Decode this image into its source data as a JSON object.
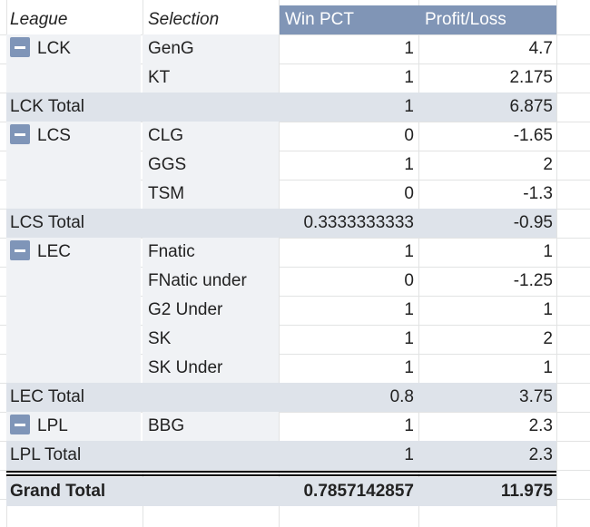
{
  "headers": {
    "league": "League",
    "selection": "Selection",
    "win_pct": "Win PCT",
    "profit_loss": "Profit/Loss"
  },
  "groups": [
    {
      "league": "LCK",
      "rows": [
        {
          "selection": "GenG",
          "win": "1",
          "pl": "4.7"
        },
        {
          "selection": "KT",
          "win": "1",
          "pl": "2.175"
        }
      ],
      "total_label": "LCK Total",
      "total_win": "1",
      "total_pl": "6.875"
    },
    {
      "league": "LCS",
      "rows": [
        {
          "selection": "CLG",
          "win": "0",
          "pl": "-1.65"
        },
        {
          "selection": "GGS",
          "win": "1",
          "pl": "2"
        },
        {
          "selection": "TSM",
          "win": "0",
          "pl": "-1.3"
        }
      ],
      "total_label": "LCS Total",
      "total_win": "0.3333333333",
      "total_pl": "-0.95"
    },
    {
      "league": "LEC",
      "rows": [
        {
          "selection": "Fnatic",
          "win": "1",
          "pl": "1"
        },
        {
          "selection": "FNatic under",
          "win": "0",
          "pl": "-1.25"
        },
        {
          "selection": "G2 Under",
          "win": "1",
          "pl": "1"
        },
        {
          "selection": "SK",
          "win": "1",
          "pl": "2"
        },
        {
          "selection": "SK Under",
          "win": "1",
          "pl": "1"
        }
      ],
      "total_label": "LEC Total",
      "total_win": "0.8",
      "total_pl": "3.75"
    },
    {
      "league": "LPL",
      "rows": [
        {
          "selection": "BBG",
          "win": "1",
          "pl": "2.3"
        }
      ],
      "total_label": "LPL Total",
      "total_win": "1",
      "total_pl": "2.3"
    }
  ],
  "grand_total": {
    "label": "Grand Total",
    "win": "0.7857142857",
    "pl": "11.975"
  },
  "colors": {
    "header_band": "#8095b6",
    "total_row": "#dee3ea",
    "collapse_button": "#7f95b8"
  },
  "icons": {
    "collapse": "minus-square-icon"
  }
}
